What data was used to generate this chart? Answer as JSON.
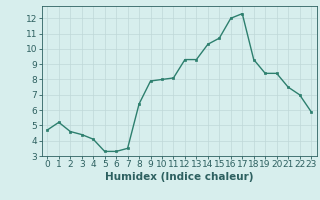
{
  "x": [
    0,
    1,
    2,
    3,
    4,
    5,
    6,
    7,
    8,
    9,
    10,
    11,
    12,
    13,
    14,
    15,
    16,
    17,
    18,
    19,
    20,
    21,
    22,
    23
  ],
  "y": [
    4.7,
    5.2,
    4.6,
    4.4,
    4.1,
    3.3,
    3.3,
    3.5,
    6.4,
    7.9,
    8.0,
    8.1,
    9.3,
    9.3,
    10.3,
    10.7,
    12.0,
    12.3,
    9.3,
    8.4,
    8.4,
    7.5,
    7.0,
    5.9
  ],
  "line_color": "#2d7f6e",
  "marker_color": "#2d7f6e",
  "bg_color": "#d7eeed",
  "grid_color": "#c0d8d8",
  "xlabel": "Humidex (Indice chaleur)",
  "ylim": [
    3,
    12.8
  ],
  "xlim": [
    -0.5,
    23.5
  ],
  "yticks": [
    3,
    4,
    5,
    6,
    7,
    8,
    9,
    10,
    11,
    12
  ],
  "xticks": [
    0,
    1,
    2,
    3,
    4,
    5,
    6,
    7,
    8,
    9,
    10,
    11,
    12,
    13,
    14,
    15,
    16,
    17,
    18,
    19,
    20,
    21,
    22,
    23
  ],
  "tick_color": "#2d6060",
  "xlabel_fontsize": 7.5,
  "tick_fontsize": 6.5
}
